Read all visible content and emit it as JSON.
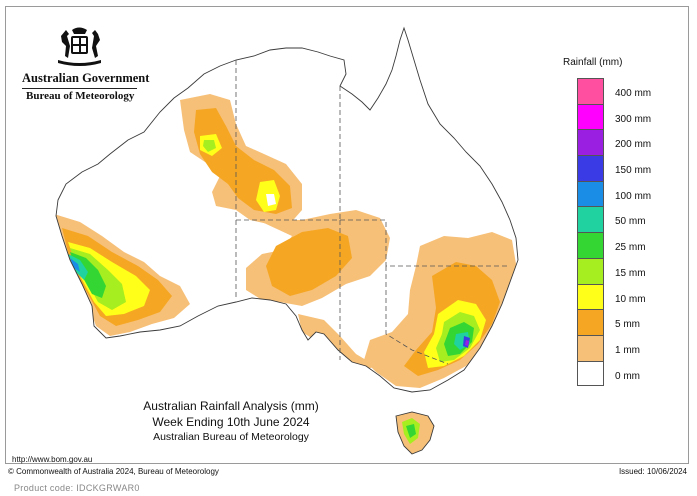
{
  "header": {
    "government": "Australian Government",
    "agency": "Bureau of Meteorology"
  },
  "map": {
    "region": "Australia",
    "title_line1": "Australian Rainfall Analysis (mm)",
    "title_line2": "Week Ending 10th June 2024",
    "title_line3": "Australian Bureau of Meteorology"
  },
  "legend": {
    "title": "Rainfall (mm)",
    "items": [
      {
        "label": "400 mm",
        "color": "#ff4fa0"
      },
      {
        "label": "300 mm",
        "color": "#ff00ff"
      },
      {
        "label": "200 mm",
        "color": "#9b1fe0"
      },
      {
        "label": "150 mm",
        "color": "#3b3be6"
      },
      {
        "label": "100 mm",
        "color": "#1a8de6"
      },
      {
        "label": "50 mm",
        "color": "#1fd2a0"
      },
      {
        "label": "25 mm",
        "color": "#33d633"
      },
      {
        "label": "15 mm",
        "color": "#a6ee1f"
      },
      {
        "label": "10 mm",
        "color": "#ffff1a"
      },
      {
        "label": "5 mm",
        "color": "#f5a623"
      },
      {
        "label": "1 mm",
        "color": "#f7c078"
      },
      {
        "label": "0 mm",
        "color": "#ffffff"
      }
    ]
  },
  "footer": {
    "url": "http://www.bom.gov.au",
    "copyright": "© Commonwealth of Australia 2024, Bureau of Meteorology",
    "issued": "Issued: 10/06/2024",
    "product_code": "Product code: IDCKGRWAR0"
  }
}
